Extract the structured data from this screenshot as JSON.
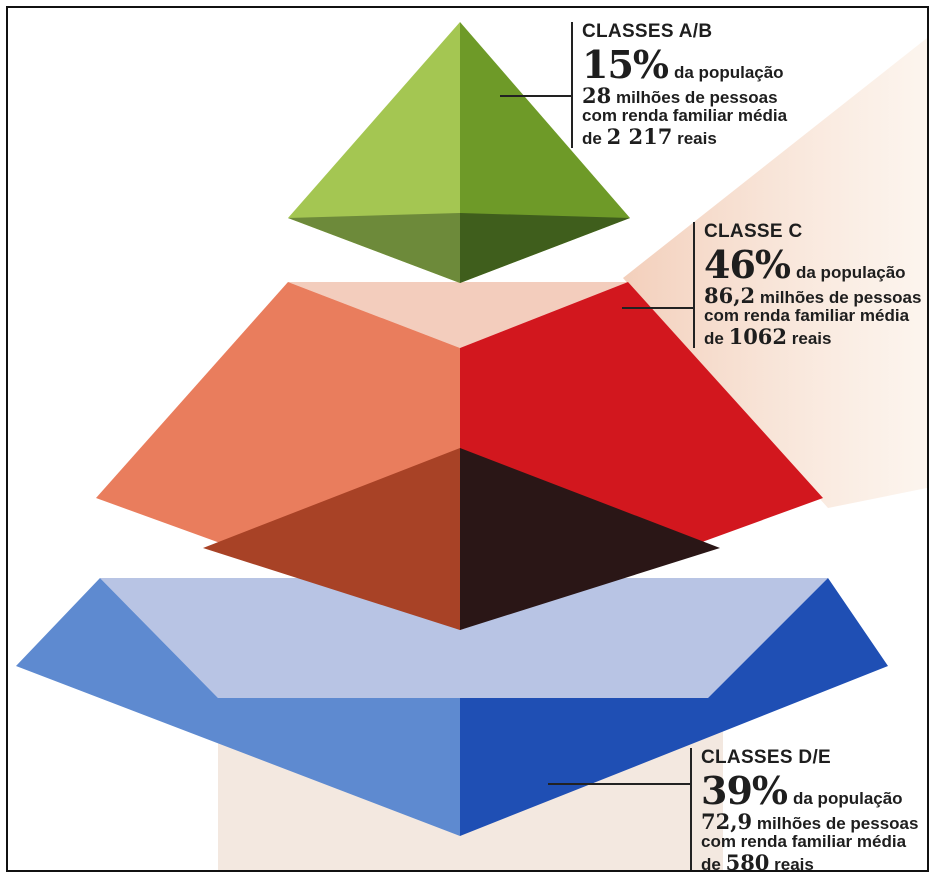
{
  "colors": {
    "top_left": "#a4c652",
    "top_right": "#6e9a28",
    "middle_left": "#e97d5d",
    "middle_right": "#d2171e",
    "bottom_left": "#5e8ad0",
    "bottom_right": "#1f4fb4",
    "background_band": "#f3d3b8"
  },
  "segments": [
    {
      "title": "CLASSES A/B",
      "percent": "15%",
      "population_suffix": "da população",
      "people_value": "28",
      "people_suffix": "milhões de pessoas",
      "income_text": "com renda familiar média",
      "income_prefix": "de",
      "income_value": "2 217",
      "income_suffix": "reais"
    },
    {
      "title": "CLASSE C",
      "percent": "46%",
      "population_suffix": "da população",
      "people_value": "86,2",
      "people_suffix": "milhões de pessoas",
      "income_text": "com renda familiar média",
      "income_prefix": "de",
      "income_value": "1062",
      "income_suffix": "reais"
    },
    {
      "title": "CLASSES D/E",
      "percent": "39%",
      "population_suffix": "da população",
      "people_value": "72,9",
      "people_suffix": "milhões de pessoas",
      "income_text": "com renda familiar média",
      "income_prefix": "de",
      "income_value": "580",
      "income_suffix": "reais"
    }
  ]
}
